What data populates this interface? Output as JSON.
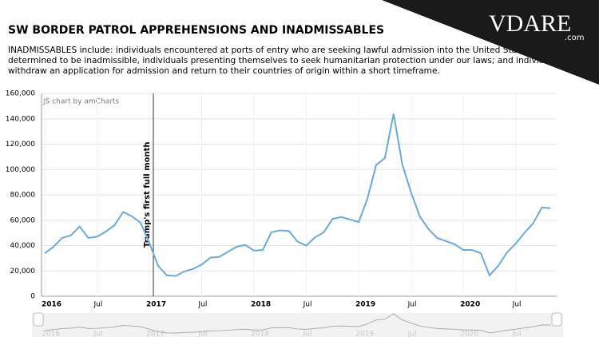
{
  "chart_data": {
    "type": "line",
    "title": "SW BORDER PATROL APPREHENSIONS AND INADMISSABLES",
    "subtitle": [
      "INADMISSABLES include: individuals encountered at ports of entry who are seeking lawful admission into the United States but are",
      "determined to be inadmissible, individuals presenting themselves to seek humanitarian protection under our laws; and individuals who",
      "withdraw an application for admission and return to their countries of origin within a short timeframe."
    ],
    "credit": "JS chart by amCharts",
    "annotation": "Trump's first full month",
    "logo": "VDARE",
    "logo_suffix": ".com",
    "categories": [
      "2016",
      null,
      null,
      null,
      null,
      null,
      "Jul",
      null,
      null,
      null,
      null,
      null,
      "2017",
      null,
      null,
      null,
      null,
      null,
      "Jul",
      null,
      null,
      null,
      null,
      null,
      "2018",
      null,
      null,
      null,
      null,
      null,
      "Jul",
      null,
      null,
      null,
      null,
      null,
      "2019",
      null,
      null,
      null,
      null,
      null,
      "Jul",
      null,
      null,
      null,
      null,
      null,
      "2020",
      null,
      null,
      null,
      null,
      null,
      "Jul",
      null,
      null,
      null,
      null
    ],
    "series": [
      {
        "name": "Inadmissables",
        "color": "#67a9e0",
        "values": [
          34000,
          39000,
          46000,
          48000,
          55000,
          46000,
          47000,
          51000,
          56000,
          66500,
          63000,
          58000,
          42000,
          24000,
          16500,
          16000,
          19500,
          21500,
          25000,
          30500,
          31000,
          35000,
          39000,
          40500,
          36000,
          36500,
          50500,
          52000,
          51500,
          43000,
          40000,
          46500,
          50500,
          61000,
          62500,
          60500,
          58500,
          77000,
          103500,
          109000,
          144000,
          104000,
          82000,
          63000,
          53000,
          46000,
          43500,
          41000,
          36500,
          36500,
          34000,
          16500,
          24000,
          34500,
          41500,
          50000,
          57500,
          70000,
          69500
        ]
      }
    ],
    "ylim": [
      0,
      160000
    ],
    "yticks": [
      0,
      {
        "value": 20000,
        "label": "20,000"
      },
      {
        "value": 40000,
        "label": "40,000"
      },
      {
        "value": 60000,
        "label": "60,000"
      },
      {
        "value": 80000,
        "label": "80,000"
      },
      {
        "value": 100000,
        "label": "100,000"
      },
      {
        "value": 120000,
        "label": "120,000"
      },
      {
        "value": 140000,
        "label": "140,000"
      },
      {
        "value": 160000,
        "label": "160,000"
      }
    ],
    "grid": true
  }
}
